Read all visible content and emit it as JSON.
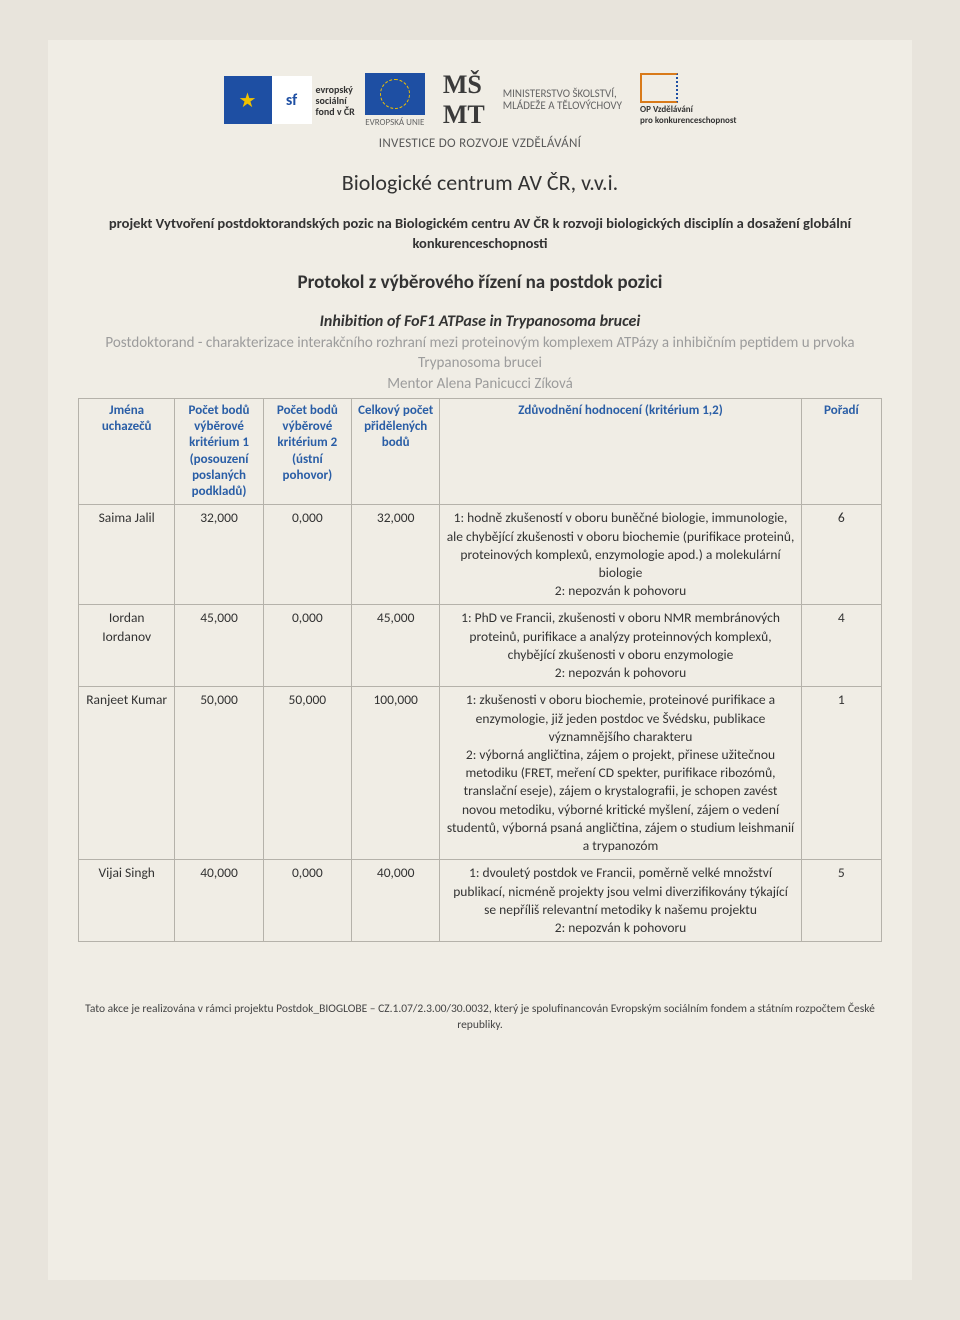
{
  "header": {
    "esf_label_line1": "evropský",
    "esf_label_line2": "sociální",
    "esf_label_line3": "fond v ČR",
    "eu_caption": "EVROPSKÁ UNIE",
    "msmt_line1": "MINISTERSTVO ŠKOLSTVÍ,",
    "msmt_line2": "MLÁDEŽE A TĚLOVÝCHOVY",
    "op_line1": "OP Vzdělávání",
    "op_line2": "pro konkurenceschopnost",
    "invest": "INVESTICE DO ROZVOJE VZDĚLÁVÁNÍ"
  },
  "title": "Biologické centrum AV ČR, v.v.i.",
  "project_desc": "projekt Vytvoření postdoktorandských pozic na Biologickém centru AV ČR k rozvoji biologických disciplín a dosažení globální konkurenceschopnosti",
  "protocol": "Protokol z výběrového řízení na postdok pozici",
  "inhibition": "Inhibition of FoF1 ATPase in Trypanosoma brucei",
  "gray1": "Postdoktorand - charakterizace interakčního rozhraní mezi proteinovým komplexem ATPázy a inhibičním peptidem u prvoka Trypanosoma brucei",
  "gray2": "Mentor Alena Panicucci Zíková",
  "table": {
    "columns": [
      "Jména uchazečů",
      "Počet bodů výběrové kritérium 1 (posouzení poslaných podkladů)",
      "Počet bodů výběrové kritérium 2 (ústní pohovor)",
      "Celkový počet přidělených bodů",
      "Zdůvodnění hodnocení (kritérium 1,2)",
      "Pořadí"
    ],
    "rows": [
      {
        "name": "Saima Jalil",
        "b1": "32,000",
        "b2": "0,000",
        "total": "32,000",
        "just": "1: hodně zkušeností v oboru buněčné biologie, immunologie, ale chybějící zkušenosti v oboru biochemie (purifikace proteinů, proteinových komplexů, enzymologie apod.) a molekulární biologie\n2: nepozván k pohovoru",
        "rank": "6"
      },
      {
        "name": "Iordan Iordanov",
        "b1": "45,000",
        "b2": "0,000",
        "total": "45,000",
        "just": "1: PhD ve Francii, zkušenosti v oboru NMR membránových proteinů, purifikace a analýzy proteinnových komplexů, chybějící zkušenosti v oboru enzymologie\n2: nepozván k pohovoru",
        "rank": "4"
      },
      {
        "name": "Ranjeet Kumar",
        "b1": "50,000",
        "b2": "50,000",
        "total": "100,000",
        "just": "1: zkušenosti v oboru biochemie, proteinové purifikace a enzymologie, již jeden postdoc ve Švédsku, publikace významnějšího charakteru\n2: výborná angličtina, zájem o projekt, přinese užitečnou metodiku (FRET, meření CD spekter, purifikace ribozómů, translační eseje), zájem o krystalografii, je schopen zavést novou metodiku, výborné kritické myšlení, zájem o vedení studentů, výborná psaná angličtina, zájem o studium leishmanií a trypanozóm",
        "rank": "1"
      },
      {
        "name": "Vijai Singh",
        "b1": "40,000",
        "b2": "0,000",
        "total": "40,000",
        "just": "1: dvouletý postdok ve Francii, poměrně velké množství publikací, nicméně projekty jsou velmi diverzifikovány týkající se nepříliš relevantní metodiky k našemu projektu\n2: nepozván k pohovoru",
        "rank": "5"
      }
    ]
  },
  "footer": "Tato akce je realizována v rámci projektu Postdok_BIOGLOBE – CZ.1.07/2.3.00/30.0032, který je spolufinancován Evropským sociálním fondem a státním rozpočtem České republiky."
}
